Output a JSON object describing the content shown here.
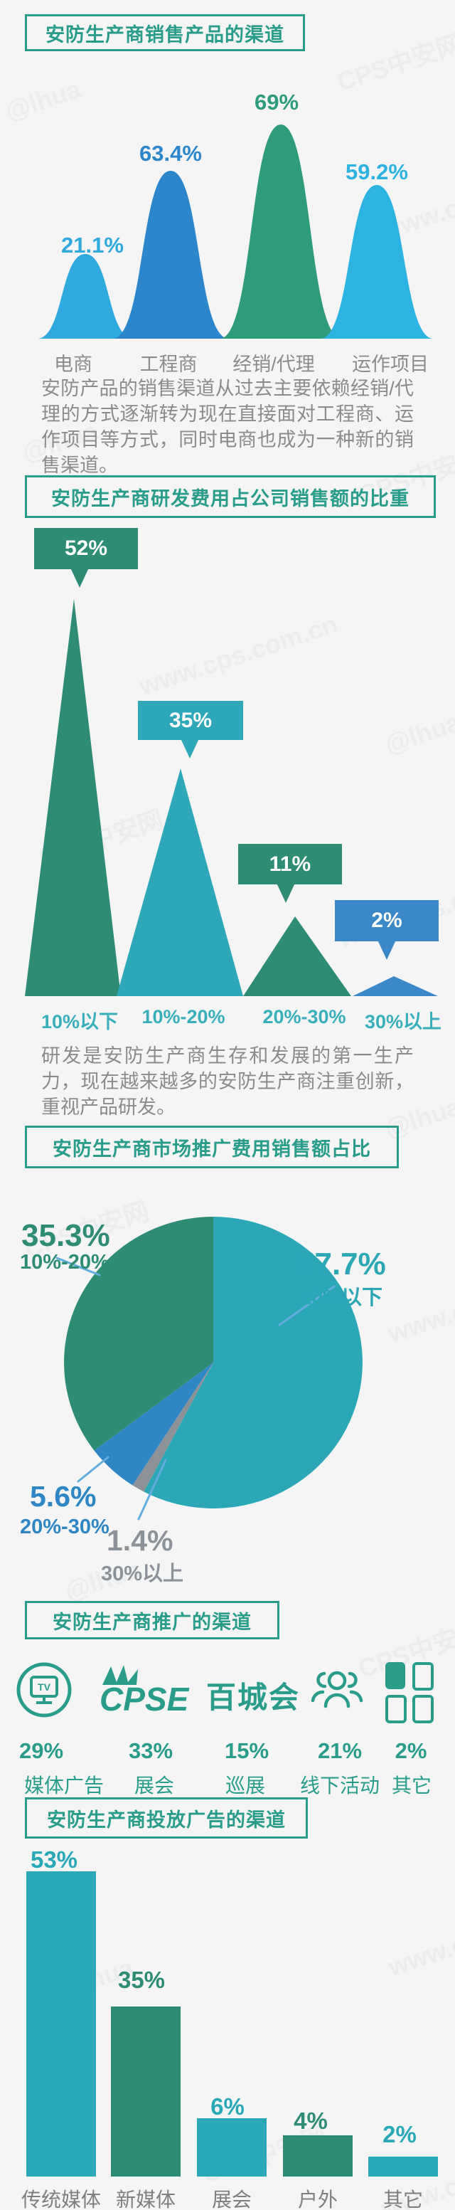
{
  "page": {
    "background": "#f5f5f6",
    "accent": "#2a9d8a",
    "watermarks": [
      "@lhua",
      "CPS中安网",
      "www.cps.com.cn"
    ]
  },
  "sections": {
    "sales": {
      "title": "安防生产商销售产品的渠道",
      "note": "安防产品的销售渠道从过去主要依赖经销/代理的方式逐渐转为现在直接面对工程商、运作项目等方式，同时电商也成为一种新的销售渠道。"
    },
    "rd": {
      "title": "安防生产商研发费用占公司销售额的比重",
      "note": "研发是安防生产商生存和发展的第一生产力，现在越来越多的安防生产商注重创新，重视产品研发。"
    },
    "marketing": {
      "title": "安防生产商市场推广费用销售额占比"
    },
    "promo": {
      "title": "安防生产商推广的渠道",
      "items": [
        {
          "pct": "29%",
          "label": "媒体广告",
          "icon": "tv-circle-icon",
          "icon_text": "TV"
        },
        {
          "pct": "33%",
          "label": "展会",
          "icon": "cpse-logo",
          "icon_text": "CPSE"
        },
        {
          "pct": "15%",
          "label": "巡展",
          "icon": "baichenghui-logo",
          "icon_text": "百城会"
        },
        {
          "pct": "21%",
          "label": "线下活动",
          "icon": "people-group-icon",
          "icon_text": ""
        },
        {
          "pct": "2%",
          "label": "其它",
          "icon": "grid-squares-icon",
          "icon_text": ""
        }
      ]
    },
    "ads": {
      "title": "安防生产商投放广告的渠道"
    }
  },
  "chart_data": [
    {
      "type": "area",
      "subtype": "overlapping-bell-peaks",
      "title": "安防生产商销售产品的渠道",
      "categories": [
        "电商",
        "工程商",
        "经销/代理",
        "运作项目"
      ],
      "values": [
        21.1,
        63.4,
        69,
        59.2
      ],
      "value_labels": [
        "21.1%",
        "63.4%",
        "69%",
        "59.2%"
      ],
      "colors": [
        "#2fa9de",
        "#2b86cb",
        "#2e9b7b",
        "#2db3e2"
      ],
      "xlabel": "",
      "ylabel": "",
      "grid": false,
      "axes": false
    },
    {
      "type": "area",
      "subtype": "triangle-peaks-with-callouts",
      "title": "安防生产商研发费用占公司销售额的比重",
      "categories": [
        "10%以下",
        "10%-20%",
        "20%-30%",
        "30%以上"
      ],
      "values": [
        52,
        35,
        11,
        2
      ],
      "value_labels": [
        "52%",
        "35%",
        "11%",
        "2%"
      ],
      "colors": [
        "#2e8c74",
        "#2ea8b8",
        "#2e8c74",
        "#3b88c8"
      ],
      "xlabel": "",
      "ylabel": "",
      "grid": false,
      "axes": false
    },
    {
      "type": "pie",
      "title": "安防生产商市场推广费用销售额占比",
      "categories": [
        "10%以下",
        "10%-20%",
        "20%-30%",
        "30%以上"
      ],
      "values": [
        57.7,
        35.3,
        5.6,
        1.4
      ],
      "value_labels": [
        "57.7%",
        "35.3%",
        "5.6%",
        "1.4%"
      ],
      "colors": [
        "#2ba7b6",
        "#2e8c74",
        "#2f86c5",
        "#8d9298"
      ],
      "draw_order_clockwise_from_top": [
        0,
        3,
        2,
        1
      ],
      "legend_position": "around-pie-with-leader-lines"
    },
    {
      "type": "bar",
      "title": "安防生产商投放广告的渠道",
      "categories": [
        "传统媒体",
        "新媒体",
        "展会",
        "户外",
        "其它"
      ],
      "values": [
        53,
        35,
        6,
        4,
        2
      ],
      "value_labels": [
        "53%",
        "35%",
        "6%",
        "4%",
        "2%"
      ],
      "colors": [
        "#29a8b8",
        "#2e8c74",
        "#29a8b8",
        "#2e8c74",
        "#29a8b8"
      ],
      "xlabel": "",
      "ylabel": "",
      "grid": false,
      "ylim": [
        0,
        60
      ]
    },
    {
      "type": "table",
      "note": "promotion channel share (icon row)",
      "title": "安防生产商推广的渠道",
      "categories": [
        "媒体广告",
        "展会",
        "巡展",
        "线下活动",
        "其它"
      ],
      "values": [
        29,
        33,
        15,
        21,
        2
      ],
      "value_labels": [
        "29%",
        "33%",
        "15%",
        "21%",
        "2%"
      ]
    }
  ]
}
